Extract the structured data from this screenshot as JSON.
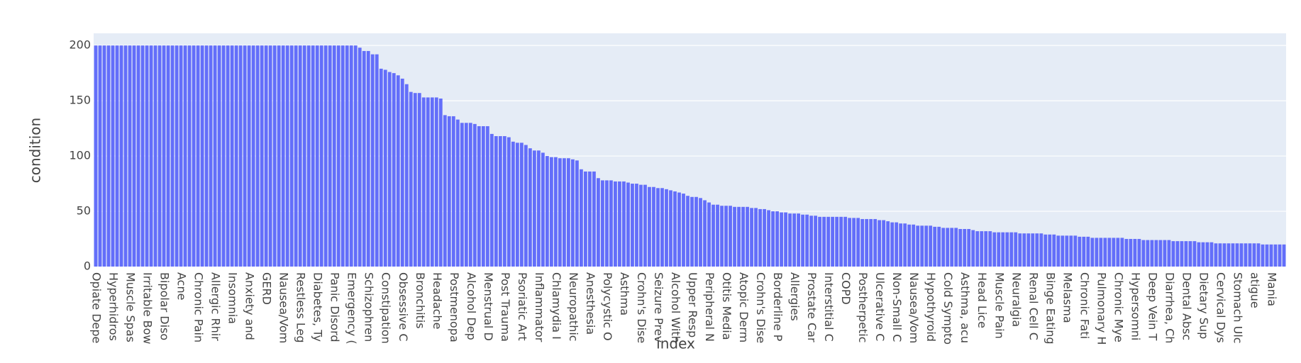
{
  "chart_data": {
    "type": "bar",
    "y_title": "condition",
    "x_title": "index",
    "color": "#636efa",
    "grid": true,
    "ylim": [
      0,
      211
    ],
    "yticks": [
      0,
      50,
      100,
      150,
      200
    ],
    "categories": [
      "Opiate Depe",
      null,
      null,
      null,
      "Hyperhidros",
      null,
      null,
      null,
      "Muscle Spas",
      null,
      null,
      null,
      "Irritable Bow",
      null,
      null,
      null,
      "Bipolar Diso",
      null,
      null,
      null,
      "Acne",
      null,
      null,
      null,
      "Chronic Pain",
      null,
      null,
      null,
      "Allergic Rhir",
      null,
      null,
      null,
      "Insomnia",
      null,
      null,
      null,
      "Anxiety and",
      null,
      null,
      null,
      "GERD",
      null,
      null,
      null,
      "Nausea/Vom",
      null,
      null,
      null,
      "Restless Leg",
      null,
      null,
      null,
      "Diabetes, Ty",
      null,
      null,
      null,
      "Panic Disord",
      null,
      null,
      null,
      "Emergency (",
      null,
      null,
      null,
      "Schizophren",
      null,
      null,
      null,
      "Constipation",
      null,
      null,
      null,
      "Obsessive C",
      null,
      null,
      null,
      "Bronchitis",
      null,
      null,
      null,
      "Headache",
      null,
      null,
      null,
      "Postmenopa",
      null,
      null,
      null,
      "Alcohol Dep",
      null,
      null,
      null,
      "Menstrual D",
      null,
      null,
      null,
      "Post Trauma",
      null,
      null,
      null,
      "Psoriatic Art",
      null,
      null,
      null,
      "Inflammator",
      null,
      null,
      null,
      "Chlamydia I",
      null,
      null,
      null,
      "Neuropathic",
      null,
      null,
      null,
      "Anesthesia",
      null,
      null,
      null,
      "Polycystic O",
      null,
      null,
      null,
      "Asthma",
      null,
      null,
      null,
      "Crohn's Dise",
      null,
      null,
      null,
      "Seizure Prev",
      null,
      null,
      null,
      "Alcohol With",
      null,
      null,
      null,
      "Upper Resp",
      null,
      null,
      null,
      "Peripheral N",
      null,
      null,
      null,
      "Otitis Media",
      null,
      null,
      null,
      "Atopic Derm",
      null,
      null,
      null,
      "Crohn's Dise",
      null,
      null,
      null,
      "Borderline P",
      null,
      null,
      null,
      "Allergies",
      null,
      null,
      null,
      "Prostate Car",
      null,
      null,
      null,
      "Interstitial C",
      null,
      null,
      null,
      "COPD",
      null,
      null,
      null,
      "Postherpetic",
      null,
      null,
      null,
      "Ulcerative C",
      null,
      null,
      null,
      "Non-Small C",
      null,
      null,
      null,
      "Nausea/Vom",
      null,
      null,
      null,
      "Hypothyroid",
      null,
      null,
      null,
      "Cold Sympto",
      null,
      null,
      null,
      "Asthma, acu",
      null,
      null,
      null,
      "Head Lice",
      null,
      null,
      null,
      "Muscle Pain",
      null,
      null,
      null,
      "Neuralgia",
      null,
      null,
      null,
      "Renal Cell C",
      null,
      null,
      null,
      "Binge Eating",
      null,
      null,
      null,
      "Melasma",
      null,
      null,
      null,
      "Chronic Fati",
      null,
      null,
      null,
      "Pulmonary H",
      null,
      null,
      null,
      "Chronic Mye",
      null,
      null,
      null,
      "Hypersomni",
      null,
      null,
      null,
      "Deep Vein T",
      null,
      null,
      null,
      "Diarrhea, Ch",
      null,
      null,
      null,
      "Dental Absc",
      null,
      null,
      null,
      "Dietary Sup",
      null,
      null,
      null,
      "Cervical Dys",
      null,
      null,
      null,
      "Stomach Ulc",
      null,
      null,
      null,
      "atigue",
      null,
      null,
      null,
      "Mania",
      null,
      null,
      null
    ],
    "values": [
      200,
      200,
      200,
      200,
      200,
      200,
      200,
      200,
      200,
      200,
      200,
      200,
      200,
      200,
      200,
      200,
      200,
      200,
      200,
      200,
      200,
      200,
      200,
      200,
      200,
      200,
      200,
      200,
      200,
      200,
      200,
      200,
      200,
      200,
      200,
      200,
      200,
      200,
      200,
      200,
      200,
      200,
      200,
      200,
      200,
      200,
      200,
      200,
      200,
      200,
      200,
      200,
      200,
      200,
      200,
      200,
      200,
      200,
      200,
      200,
      200,
      200,
      198,
      195,
      195,
      192,
      192,
      179,
      178,
      176,
      175,
      173,
      170,
      165,
      158,
      157,
      157,
      153,
      153,
      153,
      153,
      152,
      137,
      136,
      136,
      133,
      130,
      130,
      130,
      129,
      127,
      127,
      127,
      120,
      118,
      118,
      118,
      117,
      113,
      112,
      112,
      110,
      107,
      105,
      105,
      103,
      100,
      99,
      99,
      98,
      98,
      98,
      97,
      96,
      88,
      86,
      86,
      86,
      80,
      78,
      78,
      78,
      77,
      77,
      77,
      76,
      75,
      75,
      74,
      74,
      72,
      72,
      71,
      71,
      70,
      69,
      68,
      67,
      66,
      64,
      63,
      63,
      62,
      60,
      58,
      56,
      56,
      55,
      55,
      55,
      54,
      54,
      54,
      54,
      53,
      53,
      52,
      52,
      51,
      50,
      50,
      49,
      49,
      48,
      48,
      48,
      47,
      47,
      46,
      46,
      45,
      45,
      45,
      45,
      45,
      45,
      45,
      44,
      44,
      44,
      43,
      43,
      43,
      43,
      42,
      42,
      41,
      40,
      40,
      39,
      39,
      38,
      38,
      37,
      37,
      37,
      37,
      36,
      36,
      35,
      35,
      35,
      35,
      34,
      34,
      34,
      33,
      32,
      32,
      32,
      32,
      31,
      31,
      31,
      31,
      31,
      31,
      30,
      30,
      30,
      30,
      30,
      30,
      29,
      29,
      29,
      28,
      28,
      28,
      28,
      28,
      27,
      27,
      27,
      26,
      26,
      26,
      26,
      26,
      26,
      26,
      26,
      25,
      25,
      25,
      25,
      24,
      24,
      24,
      24,
      24,
      24,
      24,
      23,
      23,
      23,
      23,
      23,
      23,
      22,
      22,
      22,
      22,
      21,
      21,
      21,
      21,
      21,
      21,
      21,
      21,
      21,
      21,
      21,
      20,
      20,
      20,
      20,
      20,
      20
    ]
  }
}
